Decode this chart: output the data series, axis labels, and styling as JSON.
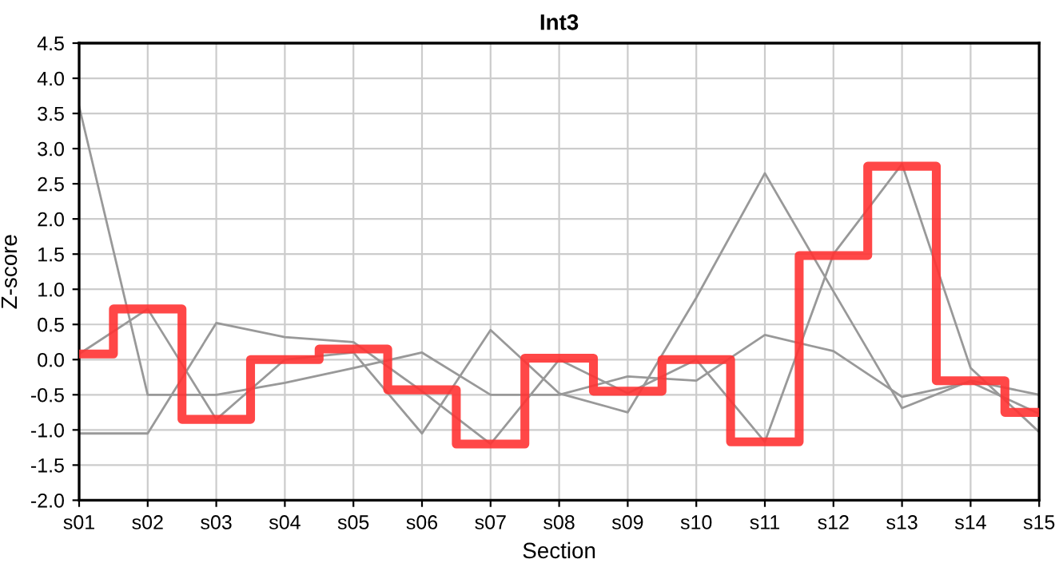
{
  "chart_data": {
    "type": "line",
    "title": "Int3",
    "xlabel": "Section",
    "ylabel": "Z-score",
    "categories": [
      "s01",
      "s02",
      "s03",
      "s04",
      "s05",
      "s06",
      "s07",
      "s08",
      "s09",
      "s10",
      "s11",
      "s12",
      "s13",
      "s14",
      "s15"
    ],
    "series": [
      {
        "color": "#999999",
        "values": [
          3.6,
          -0.5,
          -0.5,
          -0.33,
          -0.12,
          0.1,
          -0.5,
          -0.5,
          -0.24,
          -0.3,
          0.35,
          0.12,
          -0.53,
          -0.32,
          -0.77
        ]
      },
      {
        "color": "#999999",
        "values": [
          -1.05,
          -1.05,
          0.52,
          0.32,
          0.25,
          -0.45,
          -1.2,
          0.0,
          -0.48,
          0.0,
          -1.17,
          1.5,
          2.78,
          -0.12,
          -1.03
        ]
      },
      {
        "color": "#999999",
        "values": [
          0.08,
          0.72,
          -0.85,
          0.0,
          0.1,
          -1.05,
          0.42,
          -0.48,
          -0.75,
          0.88,
          2.65,
          0.97,
          -0.69,
          -0.3,
          -0.5
        ]
      },
      {
        "type": "step",
        "color": "#ff3333",
        "values": [
          0.08,
          0.72,
          -0.85,
          0.0,
          0.15,
          -0.43,
          -1.2,
          0.02,
          -0.45,
          0.0,
          -1.17,
          1.48,
          2.75,
          -0.3,
          -0.75
        ]
      }
    ],
    "ylim": [
      -2.0,
      4.5
    ],
    "yticks": [
      {
        "value": -2.0,
        "label": "-2.0"
      },
      {
        "value": -1.5,
        "label": "-1.5"
      },
      {
        "value": -1.0,
        "label": "-1.0"
      },
      {
        "value": -0.5,
        "label": "-0.5"
      },
      {
        "value": 0.0,
        "label": "0.0"
      },
      {
        "value": 0.5,
        "label": "0.5"
      },
      {
        "value": 1.0,
        "label": "1.0"
      },
      {
        "value": 1.5,
        "label": "1.5"
      },
      {
        "value": 2.0,
        "label": "2.0"
      },
      {
        "value": 2.5,
        "label": "2.5"
      },
      {
        "value": 3.0,
        "label": "3.0"
      },
      {
        "value": 3.5,
        "label": "3.5"
      },
      {
        "value": 4.0,
        "label": "4.0"
      },
      {
        "value": 4.5,
        "label": "4.5"
      }
    ],
    "grid": true,
    "legend": false
  }
}
